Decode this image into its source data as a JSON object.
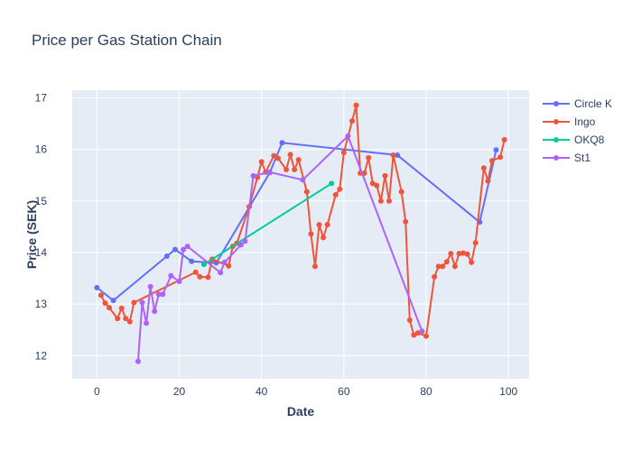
{
  "chart_data": {
    "type": "scatter",
    "title": "Price per Gas Station Chain",
    "xlabel": "Date",
    "ylabel": "Price (SEK)",
    "xlim": [
      -6,
      105
    ],
    "ylim": [
      11.55,
      17.15
    ],
    "xticks": [
      0,
      20,
      40,
      60,
      80,
      100
    ],
    "yticks": [
      12,
      13,
      14,
      15,
      16,
      17
    ],
    "grid": true,
    "legend_position": "right",
    "plot_bg": "#e5ecf6",
    "series": [
      {
        "name": "Circle K",
        "color": "#636efa",
        "mode": "lines+markers",
        "points": [
          [
            0,
            13.32
          ],
          [
            4,
            13.07
          ],
          [
            17,
            13.93
          ],
          [
            19,
            14.06
          ],
          [
            23,
            13.83
          ],
          [
            29,
            13.8
          ],
          [
            42,
            15.55
          ],
          [
            45,
            16.13
          ],
          [
            73,
            15.89
          ],
          [
            93,
            14.59
          ],
          [
            97,
            15.99
          ]
        ]
      },
      {
        "name": "Ingo",
        "color": "#ef553b",
        "mode": "lines+markers",
        "points": [
          [
            1,
            13.17
          ],
          [
            2,
            13.02
          ],
          [
            3,
            12.93
          ],
          [
            5,
            12.72
          ],
          [
            6,
            12.92
          ],
          [
            7,
            12.72
          ],
          [
            8,
            12.66
          ],
          [
            9,
            13.03
          ],
          [
            24,
            13.62
          ],
          [
            25,
            13.53
          ],
          [
            27,
            13.52
          ],
          [
            28,
            13.87
          ],
          [
            32,
            13.74
          ],
          [
            33,
            14.12
          ],
          [
            34,
            14.18
          ],
          [
            37,
            14.89
          ],
          [
            39,
            15.46
          ],
          [
            40,
            15.76
          ],
          [
            41,
            15.56
          ],
          [
            43,
            15.88
          ],
          [
            44,
            15.83
          ],
          [
            46,
            15.61
          ],
          [
            47,
            15.9
          ],
          [
            48,
            15.61
          ],
          [
            49,
            15.8
          ],
          [
            51,
            15.18
          ],
          [
            52,
            14.36
          ],
          [
            53,
            13.73
          ],
          [
            54,
            14.54
          ],
          [
            55,
            14.29
          ],
          [
            56,
            14.54
          ],
          [
            58,
            15.12
          ],
          [
            59,
            15.23
          ],
          [
            60,
            15.94
          ],
          [
            62,
            16.55
          ],
          [
            63,
            16.86
          ],
          [
            64,
            15.54
          ],
          [
            65,
            15.54
          ],
          [
            66,
            15.84
          ],
          [
            67,
            15.34
          ],
          [
            68,
            15.3
          ],
          [
            69,
            15.0
          ],
          [
            70,
            15.49
          ],
          [
            71,
            15.0
          ],
          [
            72,
            15.89
          ],
          [
            74,
            15.18
          ],
          [
            75,
            14.6
          ],
          [
            76,
            12.69
          ],
          [
            77,
            12.4
          ],
          [
            78,
            12.44
          ],
          [
            80,
            12.38
          ],
          [
            82,
            13.53
          ],
          [
            83,
            13.73
          ],
          [
            84,
            13.73
          ],
          [
            85,
            13.82
          ],
          [
            86,
            13.98
          ],
          [
            87,
            13.73
          ],
          [
            88,
            13.98
          ],
          [
            89,
            13.99
          ],
          [
            90,
            13.97
          ],
          [
            91,
            13.81
          ],
          [
            92,
            14.19
          ],
          [
            94,
            15.64
          ],
          [
            95,
            15.39
          ],
          [
            96,
            15.78
          ],
          [
            98,
            15.85
          ],
          [
            99,
            16.19
          ]
        ]
      },
      {
        "name": "OKQ8",
        "color": "#00cc96",
        "mode": "lines+markers",
        "points": [
          [
            26,
            13.77
          ],
          [
            57,
            15.34
          ]
        ]
      },
      {
        "name": "St1",
        "color": "#ab63fa",
        "mode": "lines+markers",
        "points": [
          [
            10,
            11.89
          ],
          [
            11,
            13.03
          ],
          [
            12,
            12.63
          ],
          [
            13,
            13.34
          ],
          [
            14,
            12.86
          ],
          [
            15,
            13.19
          ],
          [
            16,
            13.19
          ],
          [
            18,
            13.55
          ],
          [
            20,
            13.44
          ],
          [
            21,
            14.06
          ],
          [
            22,
            14.12
          ],
          [
            30,
            13.61
          ],
          [
            31,
            13.81
          ],
          [
            35,
            14.15
          ],
          [
            36,
            14.22
          ],
          [
            38,
            15.49
          ],
          [
            42,
            15.56
          ],
          [
            50,
            15.41
          ],
          [
            61,
            16.26
          ],
          [
            79,
            12.47
          ]
        ]
      }
    ]
  }
}
